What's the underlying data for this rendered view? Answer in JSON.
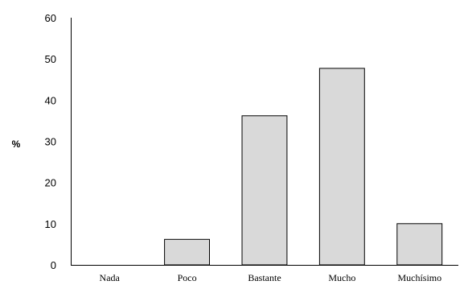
{
  "chart_data": {
    "type": "bar",
    "categories": [
      "Nada",
      "Poco",
      "Bastante",
      "Mucho",
      "Muchísimo"
    ],
    "values": [
      0,
      6.2,
      36.2,
      47.7,
      10
    ],
    "title": "",
    "xlabel": "",
    "ylabel": "%",
    "ylim": [
      0,
      60
    ],
    "yticks": [
      0,
      10,
      20,
      30,
      40,
      50,
      60
    ],
    "grid": false,
    "legend": "none",
    "bar_color": "#d9d9d9",
    "bar_edge_color": "#000000"
  }
}
